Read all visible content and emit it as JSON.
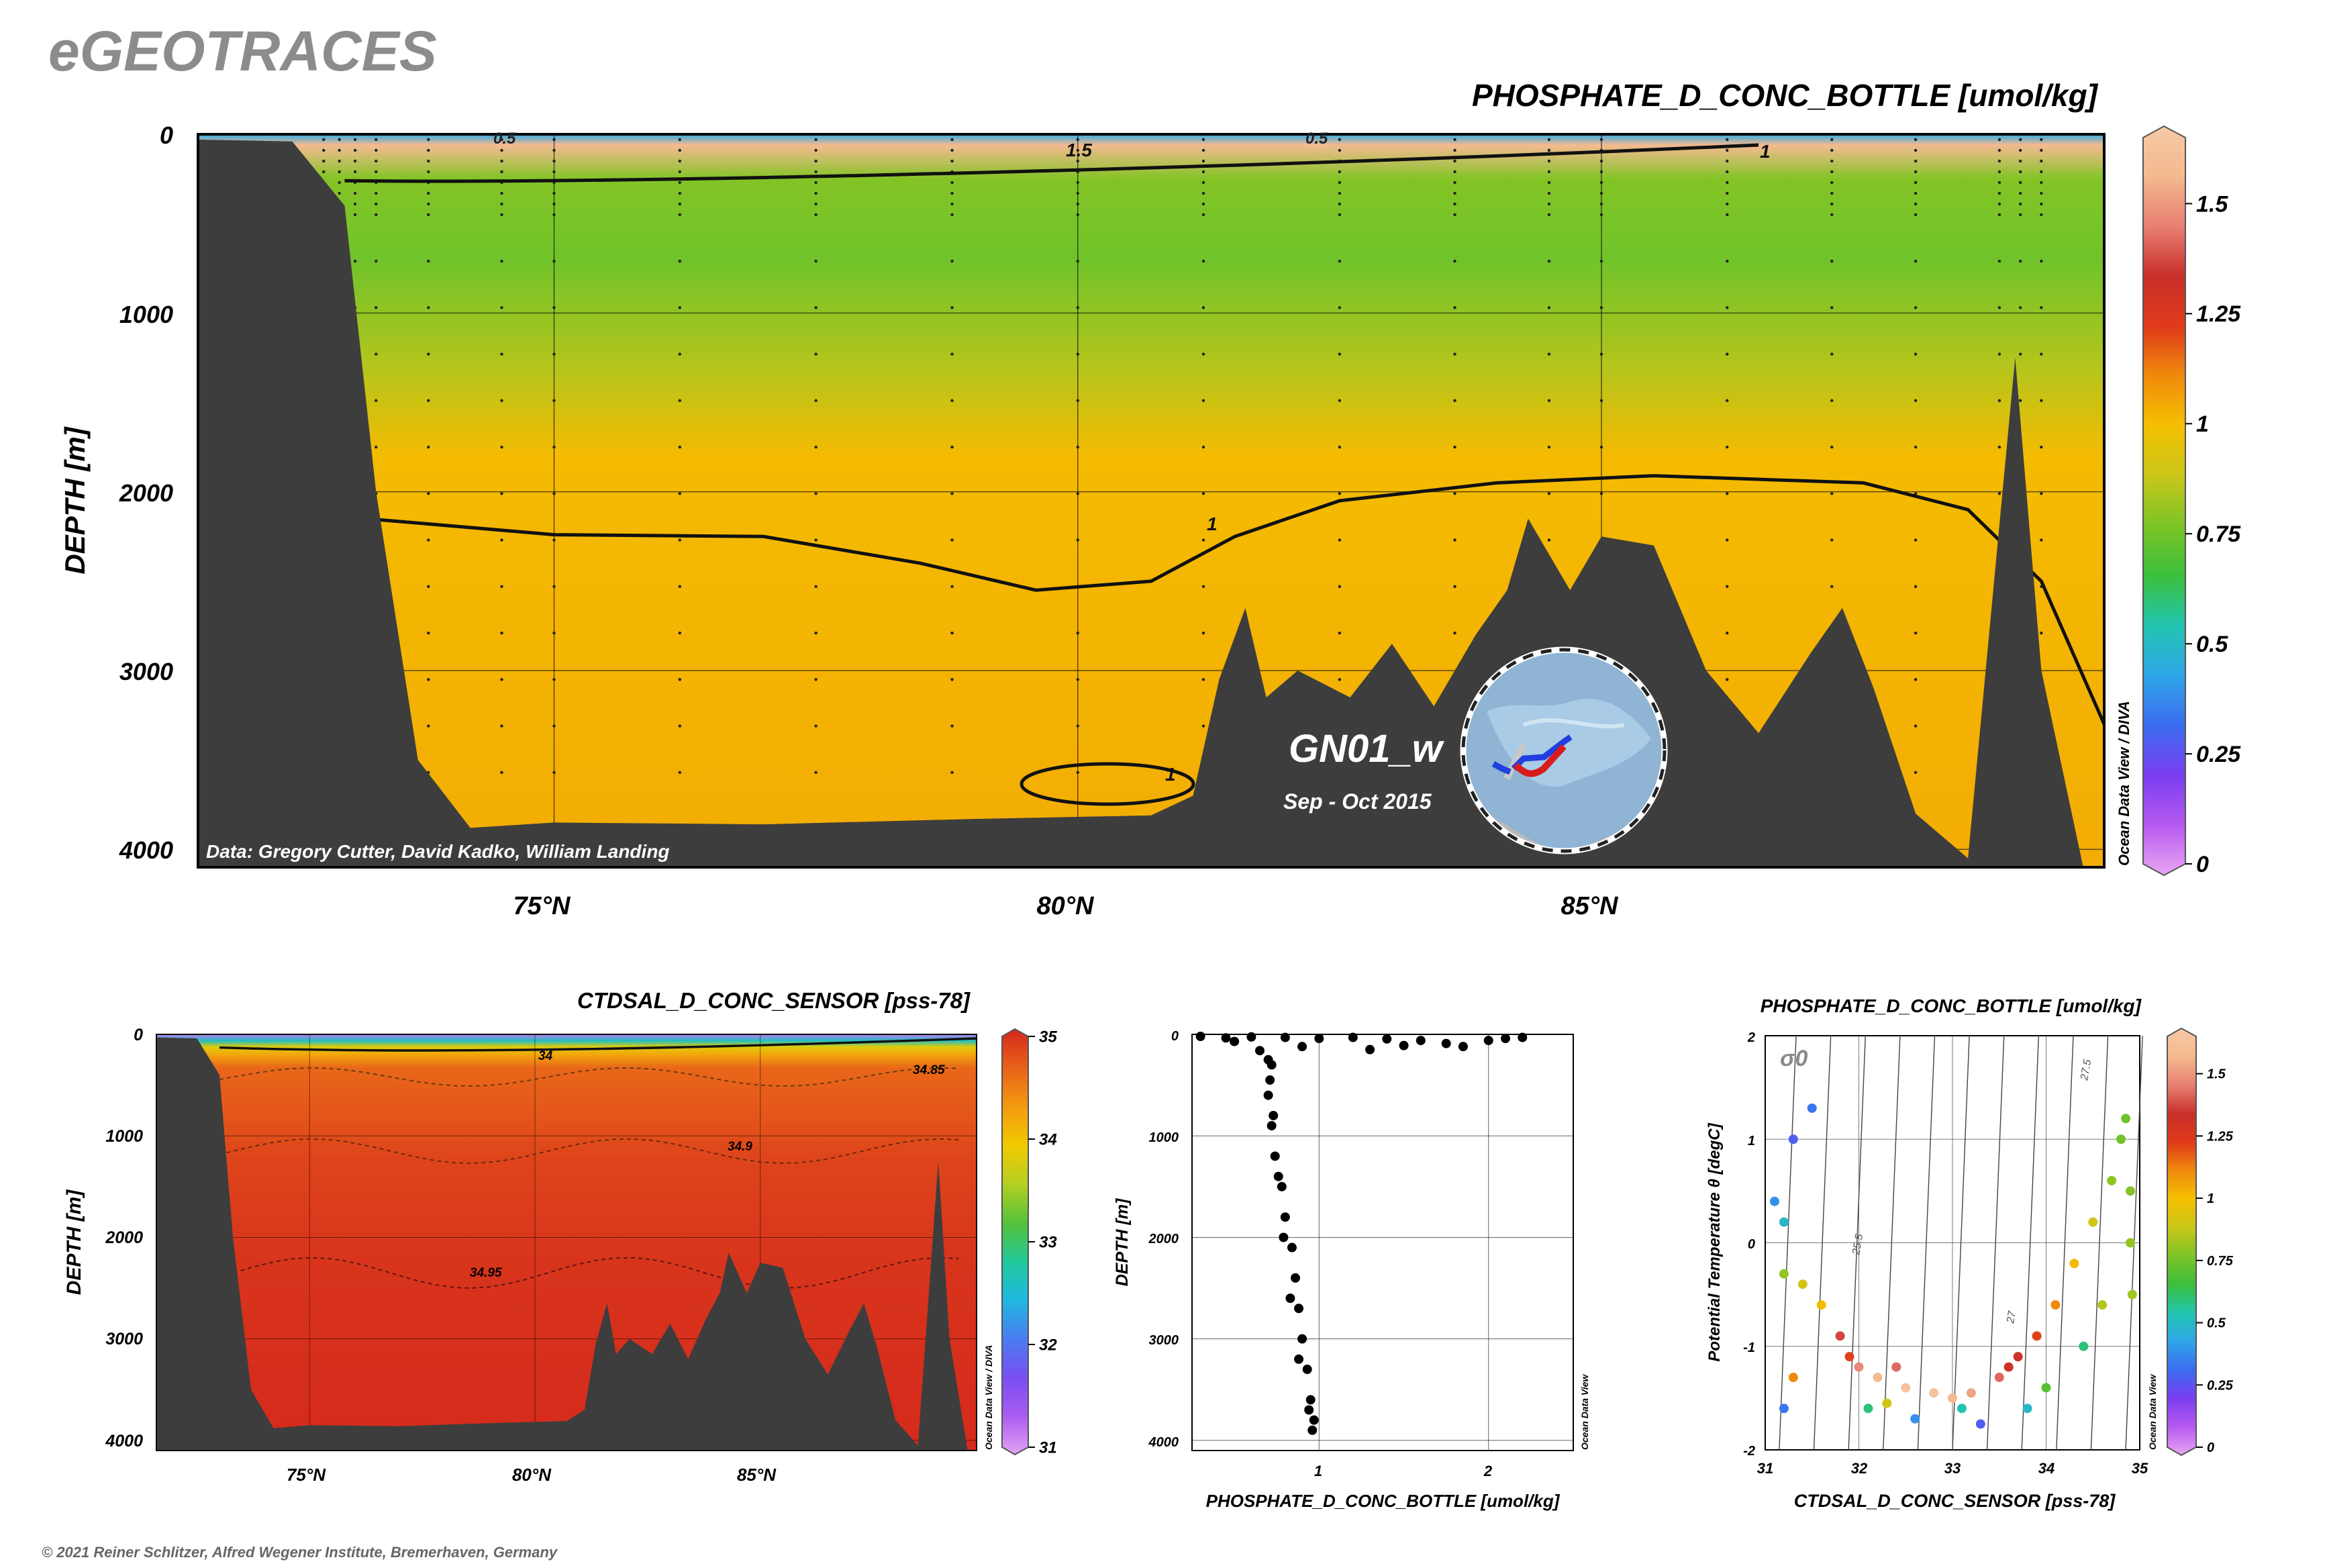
{
  "header": {
    "logo_text": "eGEOTRACES",
    "copyright": "© 2021 Reiner Schlitzer, Alfred Wegener Institute, Bremerhaven, Germany"
  },
  "colors": {
    "terrain": "#3d3d3d",
    "contour": "#111111",
    "station_dots": "#222222",
    "phosphate_scale": [
      "#e9a6f2",
      "#b65af0",
      "#7a3df0",
      "#3b6cf0",
      "#2fa6e8",
      "#22c4b0",
      "#3bbf3b",
      "#7cc426",
      "#c9c619",
      "#f4c000",
      "#f08a0c",
      "#df3a1a",
      "#c8302a",
      "#e87f73",
      "#f4b98e",
      "#f7c9a5"
    ],
    "salinity_scale": [
      "#e3a3f4",
      "#a85cf0",
      "#7a4ef2",
      "#4a7df0",
      "#1fb8e0",
      "#22c89a",
      "#56c23a",
      "#b5cf22",
      "#f2c900",
      "#f39a10",
      "#e8611a",
      "#d4271c"
    ]
  },
  "chart_data": [
    {
      "id": "main_section",
      "type": "heatmap",
      "title": "PHOSPHATE_D_CONC_BOTTLE [umol/kg]",
      "ylabel": "DEPTH [m]",
      "xlim": [
        71.6,
        89.8
      ],
      "ylim": [
        4100,
        0
      ],
      "x_ticks": [
        75,
        80,
        85
      ],
      "x_tick_labels": [
        "75°N",
        "80°N",
        "85°N"
      ],
      "y_ticks": [
        0,
        1000,
        2000,
        3000,
        4000
      ],
      "y_tick_labels": [
        "0",
        "1000",
        "2000",
        "3000",
        "4000"
      ],
      "colorbar": {
        "range": [
          0,
          1.65
        ],
        "ticks": [
          0,
          0.25,
          0.5,
          0.75,
          1,
          1.25,
          1.5
        ],
        "tick_labels": [
          "0",
          "0.25",
          "0.5",
          "0.75",
          "1",
          "1.25",
          "1.5"
        ]
      },
      "contour_labels": [
        "0.5",
        "1.5",
        "0.5",
        "1",
        "1",
        "1"
      ],
      "data_credit": "Data: Gregory Cutter, David Kadko, William Landing",
      "side_credit": "Ocean Data View / DIVA",
      "section_name": "GN01_w",
      "section_dates": "Sep - Oct 2015",
      "layers": [
        {
          "depth": 0,
          "value": 0.45
        },
        {
          "depth": 60,
          "value": 1.55
        },
        {
          "depth": 250,
          "value": 0.78
        },
        {
          "depth": 700,
          "value": 0.75
        },
        {
          "depth": 1300,
          "value": 0.85
        },
        {
          "depth": 1800,
          "value": 1.0
        },
        {
          "depth": 4100,
          "value": 1.03
        }
      ],
      "contour_1_depth": [
        {
          "lat": 73.2,
          "depth": 2150
        },
        {
          "lat": 75,
          "depth": 2240
        },
        {
          "lat": 77,
          "depth": 2250
        },
        {
          "lat": 78.5,
          "depth": 2400
        },
        {
          "lat": 79.6,
          "depth": 2550
        },
        {
          "lat": 80.7,
          "depth": 2500
        },
        {
          "lat": 81.5,
          "depth": 2250
        },
        {
          "lat": 82.5,
          "depth": 2050
        },
        {
          "lat": 84,
          "depth": 1950
        },
        {
          "lat": 85.5,
          "depth": 1910
        },
        {
          "lat": 87.5,
          "depth": 1950
        },
        {
          "lat": 88.5,
          "depth": 2100
        },
        {
          "lat": 89.2,
          "depth": 2500
        },
        {
          "lat": 89.8,
          "depth": 3300
        }
      ],
      "bathymetry": [
        {
          "lat": 71.6,
          "depth": 30
        },
        {
          "lat": 72.5,
          "depth": 40
        },
        {
          "lat": 73.0,
          "depth": 400
        },
        {
          "lat": 73.3,
          "depth": 2000
        },
        {
          "lat": 73.7,
          "depth": 3500
        },
        {
          "lat": 74.2,
          "depth": 3880
        },
        {
          "lat": 75,
          "depth": 3850
        },
        {
          "lat": 77,
          "depth": 3860
        },
        {
          "lat": 79,
          "depth": 3830
        },
        {
          "lat": 80.7,
          "depth": 3810
        },
        {
          "lat": 81.1,
          "depth": 3700
        },
        {
          "lat": 81.35,
          "depth": 3050
        },
        {
          "lat": 81.6,
          "depth": 2650
        },
        {
          "lat": 81.8,
          "depth": 3150
        },
        {
          "lat": 82.1,
          "depth": 3000
        },
        {
          "lat": 82.6,
          "depth": 3150
        },
        {
          "lat": 83.0,
          "depth": 2850
        },
        {
          "lat": 83.4,
          "depth": 3200
        },
        {
          "lat": 83.8,
          "depth": 2800
        },
        {
          "lat": 84.1,
          "depth": 2550
        },
        {
          "lat": 84.3,
          "depth": 2150
        },
        {
          "lat": 84.7,
          "depth": 2550
        },
        {
          "lat": 85.0,
          "depth": 2250
        },
        {
          "lat": 85.5,
          "depth": 2300
        },
        {
          "lat": 86.0,
          "depth": 3000
        },
        {
          "lat": 86.5,
          "depth": 3350
        },
        {
          "lat": 87.0,
          "depth": 2900
        },
        {
          "lat": 87.3,
          "depth": 2650
        },
        {
          "lat": 87.6,
          "depth": 3100
        },
        {
          "lat": 88.0,
          "depth": 3800
        },
        {
          "lat": 88.5,
          "depth": 4050
        },
        {
          "lat": 88.95,
          "depth": 1250
        },
        {
          "lat": 89.2,
          "depth": 3000
        },
        {
          "lat": 89.6,
          "depth": 4100
        }
      ],
      "station_lats": [
        72.8,
        72.95,
        73.1,
        73.3,
        73.8,
        74.5,
        75.0,
        76.2,
        77.5,
        78.8,
        80.0,
        81.2,
        82.5,
        83.6,
        84.5,
        85.0,
        86.2,
        87.2,
        88.0,
        88.8,
        89.0,
        89.2
      ]
    },
    {
      "id": "salinity_section",
      "type": "heatmap",
      "title": "CTDSAL_D_CONC_SENSOR [pss-78]",
      "ylabel": "DEPTH [m]",
      "xlim": [
        71.6,
        89.8
      ],
      "ylim": [
        4100,
        0
      ],
      "x_ticks": [
        75,
        80,
        85
      ],
      "x_tick_labels": [
        "75°N",
        "80°N",
        "85°N"
      ],
      "y_ticks": [
        0,
        1000,
        2000,
        3000,
        4000
      ],
      "y_tick_labels": [
        "0",
        "1000",
        "2000",
        "3000",
        "4000"
      ],
      "colorbar": {
        "range": [
          31,
          35
        ],
        "ticks": [
          31,
          32,
          33,
          34,
          35
        ],
        "tick_labels": [
          "31",
          "32",
          "33",
          "34",
          "35"
        ]
      },
      "contour_labels": [
        "34",
        "34.85",
        "34.9",
        "34.95"
      ],
      "side_credit": "Ocean Data View / DIVA"
    },
    {
      "id": "profile",
      "type": "scatter",
      "xlabel": "PHOSPHATE_D_CONC_BOTTLE [umol/kg]",
      "ylabel": "DEPTH [m]",
      "xlim": [
        0.25,
        2.5
      ],
      "ylim": [
        4100,
        0
      ],
      "x_ticks": [
        1,
        2
      ],
      "x_tick_labels": [
        "1",
        "2"
      ],
      "y_ticks": [
        0,
        1000,
        2000,
        3000,
        4000
      ],
      "y_tick_labels": [
        "0",
        "1000",
        "2000",
        "3000",
        "4000"
      ],
      "side_credit": "Ocean Data View",
      "points": [
        [
          0.3,
          20
        ],
        [
          0.45,
          35
        ],
        [
          0.6,
          25
        ],
        [
          0.8,
          30
        ],
        [
          1.0,
          40
        ],
        [
          1.2,
          30
        ],
        [
          1.4,
          45
        ],
        [
          1.6,
          60
        ],
        [
          1.75,
          90
        ],
        [
          1.85,
          120
        ],
        [
          2.0,
          60
        ],
        [
          2.1,
          40
        ],
        [
          2.2,
          30
        ],
        [
          0.5,
          70
        ],
        [
          0.9,
          120
        ],
        [
          1.3,
          150
        ],
        [
          1.5,
          110
        ],
        [
          0.65,
          160
        ],
        [
          0.72,
          300
        ],
        [
          0.7,
          600
        ],
        [
          0.72,
          900
        ],
        [
          0.74,
          1200
        ],
        [
          0.78,
          1500
        ],
        [
          0.8,
          1800
        ],
        [
          0.84,
          2100
        ],
        [
          0.86,
          2400
        ],
        [
          0.88,
          2700
        ],
        [
          0.9,
          3000
        ],
        [
          0.93,
          3300
        ],
        [
          0.95,
          3600
        ],
        [
          0.97,
          3800
        ],
        [
          0.96,
          3900
        ],
        [
          0.94,
          3700
        ],
        [
          0.88,
          3200
        ],
        [
          0.83,
          2600
        ],
        [
          0.79,
          2000
        ],
        [
          0.76,
          1400
        ],
        [
          0.73,
          800
        ],
        [
          0.71,
          450
        ],
        [
          0.7,
          250
        ]
      ]
    },
    {
      "id": "ts_diagram",
      "type": "scatter",
      "title": "PHOSPHATE_D_CONC_BOTTLE [umol/kg]",
      "xlabel": "CTDSAL_D_CONC_SENSOR [pss-78]",
      "ylabel": "Potential Temperature θ [degC]",
      "xlim": [
        31,
        35
      ],
      "ylim": [
        -2,
        2
      ],
      "x_ticks": [
        31,
        32,
        33,
        34,
        35
      ],
      "x_tick_labels": [
        "31",
        "32",
        "33",
        "34",
        "35"
      ],
      "y_ticks": [
        -2,
        -1,
        0,
        1,
        2
      ],
      "y_tick_labels": [
        "-2",
        "-1",
        "0",
        "1",
        "2"
      ],
      "isopycnal_labels": [
        "σ0",
        "25.5",
        "27",
        "27.5"
      ],
      "colorbar": {
        "range": [
          0,
          1.65
        ],
        "ticks": [
          0,
          0.25,
          0.5,
          0.75,
          1,
          1.25,
          1.5
        ],
        "tick_labels": [
          "0",
          "0.25",
          "0.5",
          "0.75",
          "1",
          "1.25",
          "1.5"
        ]
      },
      "side_credit": "Ocean Data View",
      "points": [
        [
          31.1,
          0.4,
          0.4
        ],
        [
          31.2,
          0.2,
          0.5
        ],
        [
          31.3,
          1.0,
          0.3
        ],
        [
          31.5,
          1.3,
          0.35
        ],
        [
          31.2,
          -0.3,
          0.8
        ],
        [
          31.4,
          -0.4,
          0.9
        ],
        [
          31.6,
          -0.6,
          1.0
        ],
        [
          31.8,
          -0.9,
          1.35
        ],
        [
          32.0,
          -1.2,
          1.45
        ],
        [
          32.2,
          -1.3,
          1.55
        ],
        [
          32.5,
          -1.4,
          1.6
        ],
        [
          32.8,
          -1.45,
          1.6
        ],
        [
          33.0,
          -1.5,
          1.55
        ],
        [
          33.2,
          -1.45,
          1.5
        ],
        [
          33.5,
          -1.3,
          1.4
        ],
        [
          33.7,
          -1.1,
          1.3
        ],
        [
          33.9,
          -0.9,
          1.2
        ],
        [
          34.1,
          -0.6,
          1.1
        ],
        [
          34.3,
          -0.2,
          1.0
        ],
        [
          34.5,
          0.2,
          0.9
        ],
        [
          34.7,
          0.6,
          0.8
        ],
        [
          34.8,
          1.0,
          0.75
        ],
        [
          34.85,
          1.2,
          0.75
        ],
        [
          34.9,
          0.5,
          0.78
        ],
        [
          34.9,
          0.0,
          0.8
        ],
        [
          34.92,
          -0.5,
          0.82
        ],
        [
          32.1,
          -1.6,
          0.6
        ],
        [
          32.6,
          -1.7,
          0.4
        ],
        [
          33.3,
          -1.75,
          0.3
        ],
        [
          33.8,
          -1.6,
          0.5
        ],
        [
          34.0,
          -1.4,
          0.7
        ],
        [
          31.9,
          -1.1,
          1.2
        ],
        [
          32.4,
          -1.2,
          1.4
        ],
        [
          33.6,
          -1.2,
          1.3
        ],
        [
          31.3,
          -1.3,
          1.1
        ],
        [
          31.2,
          -1.6,
          0.35
        ],
        [
          32.3,
          -1.55,
          0.9
        ],
        [
          33.1,
          -1.6,
          0.55
        ],
        [
          34.4,
          -1.0,
          0.6
        ],
        [
          34.6,
          -0.6,
          0.85
        ]
      ]
    }
  ]
}
